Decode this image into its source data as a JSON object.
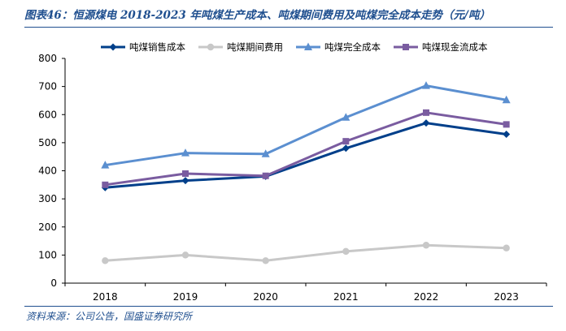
{
  "header": {
    "title": "图表46：恒源煤电 2018-2023 年吨煤生产成本、吨煤期间费用及吨煤完全成本走势（元/吨）"
  },
  "footer": {
    "source": "资料来源：公司公告，国盛证券研究所"
  },
  "chart_data": {
    "type": "line",
    "title": "恒源煤电 2018-2023 年吨煤生产成本、吨煤期间费用及吨煤完全成本走势（元/吨）",
    "xlabel": "",
    "ylabel": "",
    "categories": [
      "2018",
      "2019",
      "2020",
      "2021",
      "2022",
      "2023"
    ],
    "ylim": [
      0,
      800
    ],
    "yticks": [
      0,
      100,
      200,
      300,
      400,
      500,
      600,
      700,
      800
    ],
    "legend_position": "top",
    "series": [
      {
        "name": "吨煤销售成本",
        "color": "#003f8a",
        "marker": "diamond",
        "values": [
          340,
          365,
          380,
          480,
          570,
          530
        ]
      },
      {
        "name": "吨煤期间费用",
        "color": "#c8c8c8",
        "marker": "circle",
        "values": [
          80,
          100,
          80,
          113,
          135,
          125
        ]
      },
      {
        "name": "吨煤完全成本",
        "color": "#5b8fd0",
        "marker": "triangle",
        "values": [
          420,
          463,
          460,
          590,
          703,
          652
        ]
      },
      {
        "name": "吨煤现金流成本",
        "color": "#7a5ca0",
        "marker": "square",
        "values": [
          350,
          390,
          382,
          505,
          607,
          565
        ]
      }
    ]
  }
}
